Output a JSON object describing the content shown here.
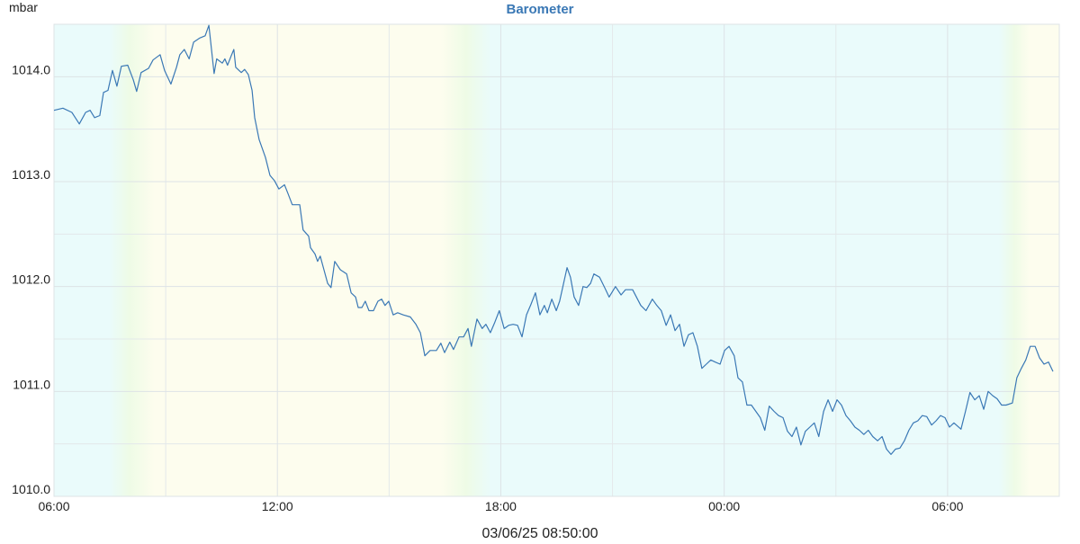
{
  "chart_data": {
    "type": "line",
    "title": "Barometer",
    "y_unit": "mbar",
    "subtitle": "03/06/25 08:50:00",
    "color": "#3a78b5",
    "grid": true,
    "xlim": [
      0,
      27
    ],
    "xticks": [
      {
        "value": 0,
        "label": "06:00"
      },
      {
        "value": 6,
        "label": "12:00"
      },
      {
        "value": 12,
        "label": "18:00"
      },
      {
        "value": 18,
        "label": "00:00"
      },
      {
        "value": 24,
        "label": "06:00"
      }
    ],
    "minor_xticks": [
      3,
      9,
      15,
      21
    ],
    "ylim": [
      1010,
      1014.5
    ],
    "yticks": [
      {
        "value": 1010,
        "label": "1010.0"
      },
      {
        "value": 1011,
        "label": "1011.0"
      },
      {
        "value": 1012,
        "label": "1012.0"
      },
      {
        "value": 1013,
        "label": "1013.0"
      },
      {
        "value": 1014,
        "label": "1014.0"
      }
    ],
    "minor_yticks": [
      1010.5,
      1011.5,
      1012.5,
      1013.5
    ],
    "x": [
      0,
      0.24,
      0.48,
      0.68,
      0.85,
      0.97,
      1.09,
      1.23,
      1.33,
      1.45,
      1.57,
      1.69,
      1.81,
      1.98,
      2.13,
      2.22,
      2.34,
      2.54,
      2.66,
      2.85,
      2.97,
      3.14,
      3.29,
      3.38,
      3.5,
      3.63,
      3.75,
      3.92,
      4.06,
      4.16,
      4.3,
      4.37,
      4.52,
      4.59,
      4.66,
      4.76,
      4.83,
      4.88,
      5.03,
      5.12,
      5.22,
      5.32,
      5.39,
      5.51,
      5.68,
      5.8,
      5.92,
      6.04,
      6.19,
      6.28,
      6.4,
      6.6,
      6.69,
      6.84,
      6.89,
      7.01,
      7.08,
      7.15,
      7.25,
      7.35,
      7.44,
      7.54,
      7.69,
      7.86,
      7.98,
      8.1,
      8.17,
      8.27,
      8.36,
      8.46,
      8.58,
      8.7,
      8.8,
      8.89,
      8.99,
      9.11,
      9.23,
      9.38,
      9.57,
      9.72,
      9.84,
      9.96,
      10.1,
      10.27,
      10.39,
      10.49,
      10.63,
      10.73,
      10.88,
      11,
      11.12,
      11.21,
      11.36,
      11.5,
      11.6,
      11.72,
      11.84,
      11.96,
      12.09,
      12.21,
      12.33,
      12.45,
      12.57,
      12.69,
      12.81,
      12.93,
      13.05,
      13.17,
      13.25,
      13.37,
      13.49,
      13.58,
      13.78,
      13.87,
      13.97,
      14.09,
      14.21,
      14.31,
      14.41,
      14.5,
      14.65,
      14.79,
      14.91,
      15.08,
      15.23,
      15.35,
      15.54,
      15.76,
      15.9,
      16.07,
      16.19,
      16.31,
      16.44,
      16.56,
      16.68,
      16.8,
      16.92,
      17.04,
      17.16,
      17.28,
      17.4,
      17.52,
      17.64,
      17.76,
      17.89,
      18.01,
      18.13,
      18.27,
      18.37,
      18.49,
      18.61,
      18.73,
      18.85,
      18.97,
      19.09,
      19.21,
      19.34,
      19.46,
      19.58,
      19.7,
      19.82,
      19.94,
      20.06,
      20.18,
      20.3,
      20.42,
      20.54,
      20.67,
      20.79,
      20.91,
      21.03,
      21.15,
      21.27,
      21.39,
      21.51,
      21.63,
      21.75,
      21.87,
      21.99,
      22.12,
      22.24,
      22.36,
      22.48,
      22.6,
      22.72,
      22.84,
      22.96,
      23.08,
      23.2,
      23.32,
      23.44,
      23.57,
      23.69,
      23.81,
      23.93,
      24.05,
      24.17,
      24.36,
      24.48,
      24.6,
      24.73,
      24.85,
      24.97,
      25.09,
      25.21,
      25.33,
      25.45,
      25.57,
      25.74,
      25.86,
      25.98,
      26.1,
      26.22,
      26.35,
      26.47,
      26.59,
      26.71,
      26.83
    ],
    "values": [
      1013.68,
      1013.7,
      1013.66,
      1013.55,
      1013.66,
      1013.68,
      1013.61,
      1013.63,
      1013.85,
      1013.87,
      1014.06,
      1013.91,
      1014.1,
      1014.11,
      1013.97,
      1013.86,
      1014.04,
      1014.08,
      1014.16,
      1014.21,
      1014.06,
      1013.93,
      1014.09,
      1014.21,
      1014.26,
      1014.17,
      1014.33,
      1014.37,
      1014.39,
      1014.49,
      1014.03,
      1014.17,
      1014.13,
      1014.17,
      1014.11,
      1014.2,
      1014.26,
      1014.09,
      1014.04,
      1014.07,
      1014.02,
      1013.87,
      1013.61,
      1013.4,
      1013.23,
      1013.06,
      1013.01,
      1012.93,
      1012.97,
      1012.89,
      1012.78,
      1012.78,
      1012.54,
      1012.48,
      1012.37,
      1012.31,
      1012.24,
      1012.29,
      1012.16,
      1012.03,
      1011.99,
      1012.24,
      1012.16,
      1012.12,
      1011.94,
      1011.9,
      1011.8,
      1011.8,
      1011.86,
      1011.77,
      1011.77,
      1011.86,
      1011.88,
      1011.82,
      1011.86,
      1011.73,
      1011.75,
      1011.73,
      1011.71,
      1011.64,
      1011.56,
      1011.34,
      1011.39,
      1011.39,
      1011.46,
      1011.37,
      1011.47,
      1011.4,
      1011.52,
      1011.52,
      1011.6,
      1011.43,
      1011.69,
      1011.6,
      1011.64,
      1011.56,
      1011.66,
      1011.77,
      1011.6,
      1011.63,
      1011.64,
      1011.63,
      1011.52,
      1011.73,
      1011.83,
      1011.94,
      1011.73,
      1011.82,
      1011.75,
      1011.88,
      1011.77,
      1011.86,
      1012.18,
      1012.09,
      1011.9,
      1011.82,
      1012,
      1011.99,
      1012.03,
      1012.12,
      1012.09,
      1011.99,
      1011.9,
      1012,
      1011.92,
      1011.97,
      1011.97,
      1011.82,
      1011.77,
      1011.88,
      1011.82,
      1011.77,
      1011.63,
      1011.73,
      1011.58,
      1011.64,
      1011.43,
      1011.54,
      1011.56,
      1011.43,
      1011.22,
      1011.26,
      1011.3,
      1011.28,
      1011.26,
      1011.39,
      1011.43,
      1011.34,
      1011.13,
      1011.09,
      1010.87,
      1010.87,
      1010.81,
      1010.75,
      1010.63,
      1010.86,
      1010.81,
      1010.77,
      1010.75,
      1010.62,
      1010.57,
      1010.66,
      1010.49,
      1010.62,
      1010.66,
      1010.7,
      1010.57,
      1010.81,
      1010.92,
      1010.81,
      1010.92,
      1010.87,
      1010.77,
      1010.72,
      1010.66,
      1010.63,
      1010.59,
      1010.63,
      1010.57,
      1010.53,
      1010.57,
      1010.45,
      1010.4,
      1010.45,
      1010.46,
      1010.53,
      1010.63,
      1010.7,
      1010.72,
      1010.77,
      1010.76,
      1010.68,
      1010.72,
      1010.77,
      1010.75,
      1010.66,
      1010.7,
      1010.64,
      1010.81,
      1010.99,
      1010.92,
      1010.96,
      1010.83,
      1011,
      1010.96,
      1010.93,
      1010.87,
      1010.87,
      1010.89,
      1011.13,
      1011.22,
      1011.3,
      1011.43,
      1011.43,
      1011.32,
      1011.26,
      1011.28,
      1011.19
    ]
  }
}
